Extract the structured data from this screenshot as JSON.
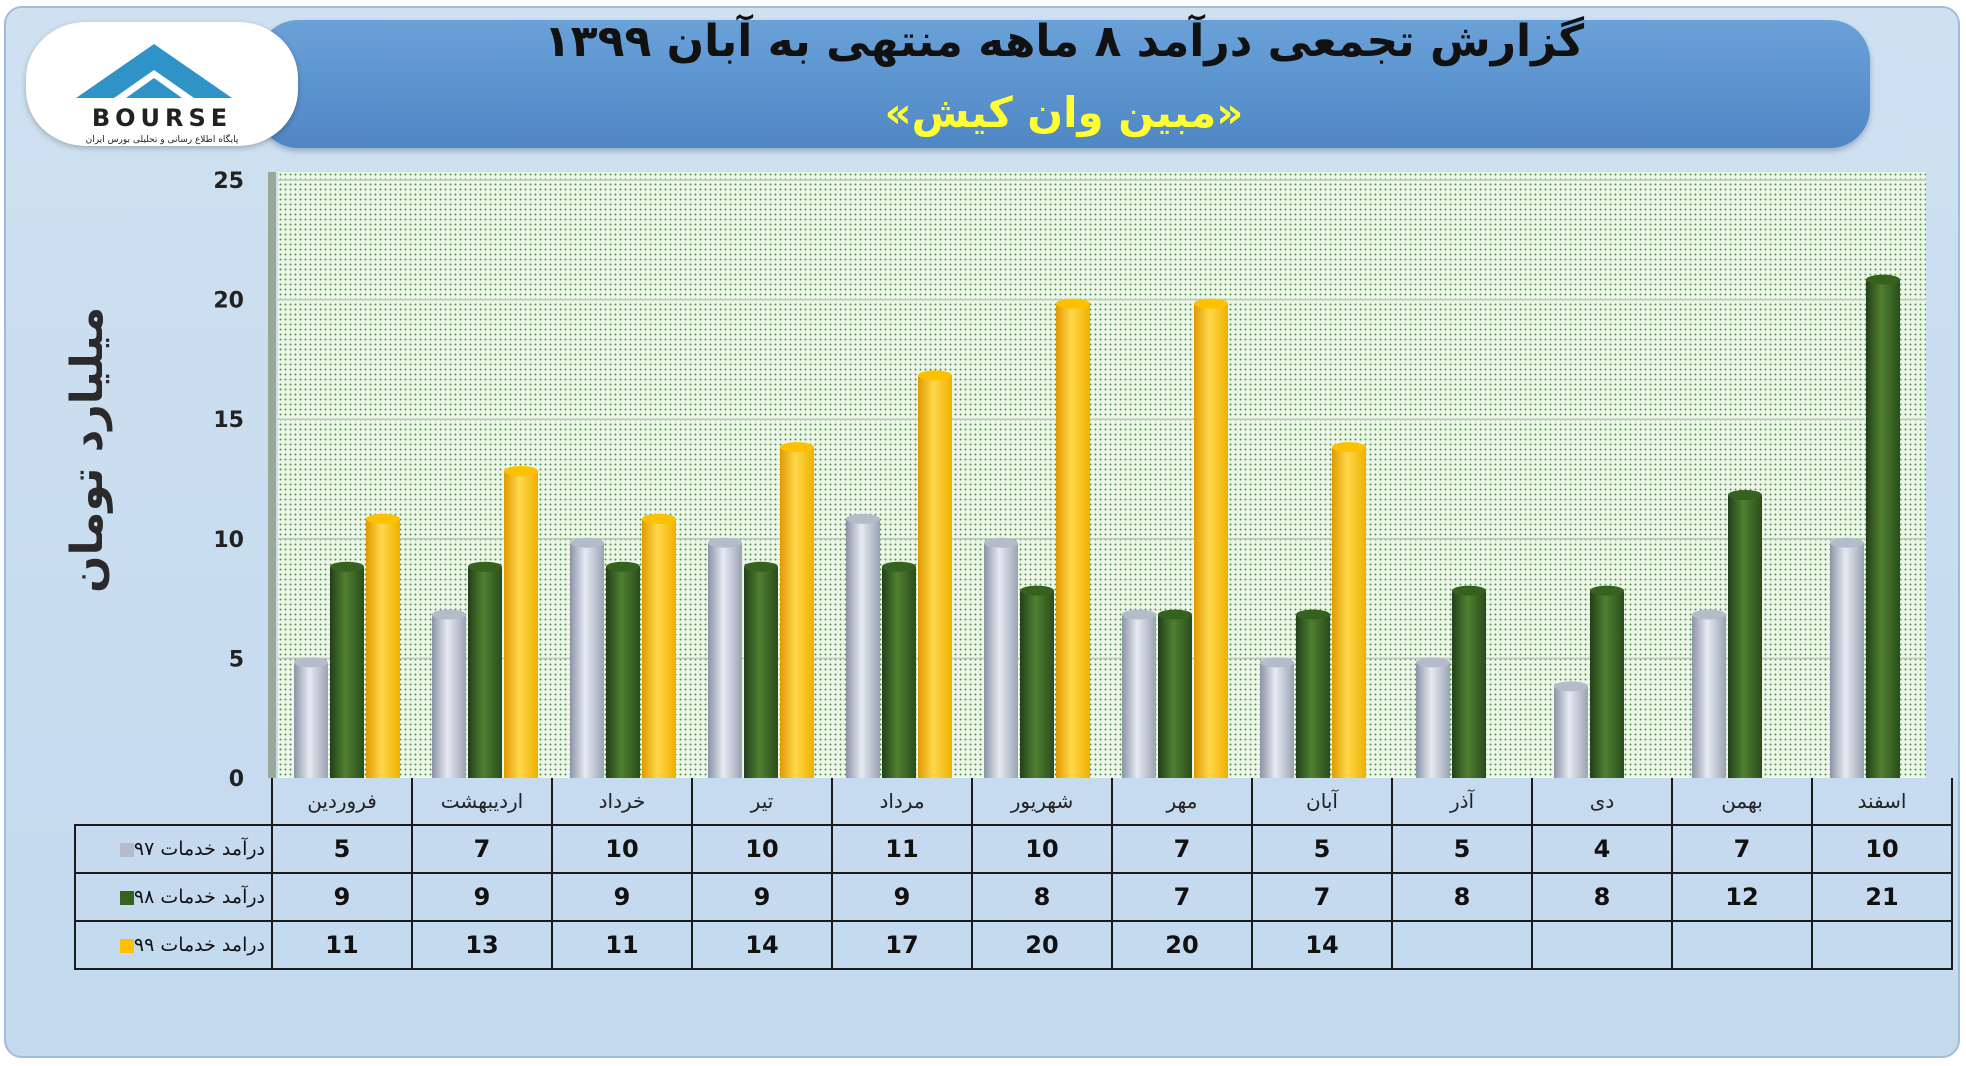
{
  "header": {
    "title": "گزارش تجمعی درآمد ۸ ماهه منتهی به آبان ۱۳۹۹",
    "subtitle": "«مبین وان کیش»"
  },
  "logo": {
    "wordmark": "BOURSE",
    "tagline": "پایگاه اطلاع رسانی و تحلیلی بورس ایران"
  },
  "colors": {
    "series_97": "#b4bccb",
    "series_98": "#37611f",
    "series_99": "#ffc000",
    "banner": "#5b93cf",
    "subtitle": "#ffff33"
  },
  "chart_data": {
    "type": "bar",
    "ylabel": "میلیارد تومان",
    "ylim": [
      0,
      25
    ],
    "yticks": [
      "0",
      "5",
      "10",
      "15",
      "20",
      "25"
    ],
    "grid": true,
    "categories": [
      "فروردین",
      "اردیبهشت",
      "خرداد",
      "تیر",
      "مرداد",
      "شهریور",
      "مهر",
      "آبان",
      "آذر",
      "دی",
      "بهمن",
      "اسفند"
    ],
    "series": [
      {
        "name": "درآمد خدمات ۹۷",
        "values": [
          5,
          7,
          10,
          10,
          11,
          10,
          7,
          5,
          5,
          4,
          7,
          10
        ]
      },
      {
        "name": "درآمد خدمات ۹۸",
        "values": [
          9,
          9,
          9,
          9,
          9,
          8,
          7,
          7,
          8,
          8,
          12,
          21
        ]
      },
      {
        "name": "درامد خدمات ۹۹",
        "values": [
          11,
          13,
          11,
          14,
          17,
          20,
          20,
          14,
          null,
          null,
          null,
          null
        ]
      }
    ]
  }
}
